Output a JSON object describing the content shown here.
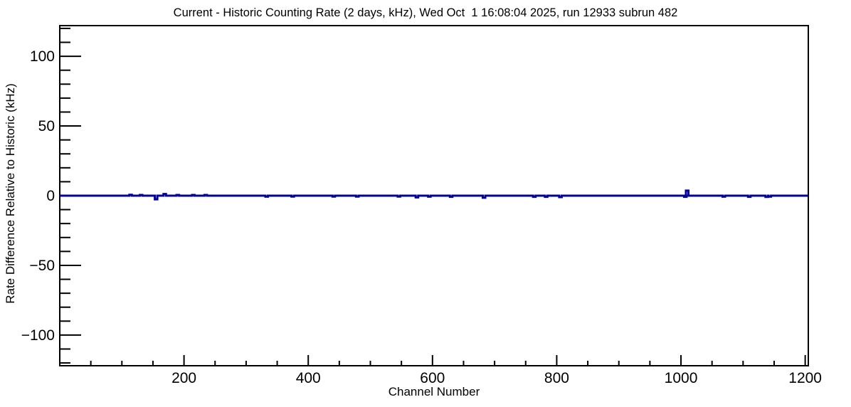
{
  "chart_data": {
    "type": "line",
    "title": "Current - Historic Counting Rate (2 days, kHz), Wed Oct  1 16:08:04 2025, run 12933 subrun 482",
    "xlabel": "Channel Number",
    "ylabel": "Rate Difference Relative to Historic (kHz)",
    "xlim": [
      0,
      1205
    ],
    "ylim": [
      -122,
      122
    ],
    "x_ticks": [
      200,
      400,
      600,
      800,
      1000,
      1200
    ],
    "x_tick_labels": [
      "200",
      "400",
      "600",
      "800",
      "1000",
      "1200"
    ],
    "x_minor_step": 50,
    "y_ticks": [
      -100,
      -50,
      0,
      50,
      100
    ],
    "y_tick_labels": [
      "−100",
      "−50",
      "0",
      "50",
      "100"
    ],
    "y_minor_step": 10,
    "grid": false,
    "legend": "none",
    "baseline_value": 0,
    "bin_width_channels": 4,
    "spikes": [
      [
        114,
        0.6
      ],
      [
        131,
        0.5
      ],
      [
        155,
        -2.6
      ],
      [
        169,
        1.2
      ],
      [
        190,
        0.5
      ],
      [
        215,
        0.5
      ],
      [
        235,
        0.5
      ],
      [
        333,
        -0.7
      ],
      [
        375,
        -0.6
      ],
      [
        441,
        -0.6
      ],
      [
        479,
        -0.6
      ],
      [
        546,
        -0.6
      ],
      [
        575,
        -1.2
      ],
      [
        595,
        -0.7
      ],
      [
        630,
        -0.8
      ],
      [
        683,
        -1.5
      ],
      [
        764,
        -0.8
      ],
      [
        783,
        -0.8
      ],
      [
        806,
        -1.0
      ],
      [
        1007,
        -0.8
      ],
      [
        1010,
        3.6
      ],
      [
        1069,
        -0.7
      ],
      [
        1110,
        -0.8
      ],
      [
        1138,
        -0.9
      ],
      [
        1143,
        -0.7
      ]
    ],
    "colors": {
      "line": "#000099",
      "axis": "#000000",
      "background": "#ffffff"
    }
  }
}
